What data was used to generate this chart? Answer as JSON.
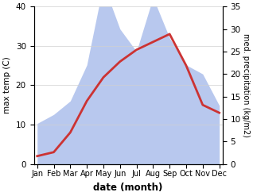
{
  "months": [
    "Jan",
    "Feb",
    "Mar",
    "Apr",
    "May",
    "Jun",
    "Jul",
    "Aug",
    "Sep",
    "Oct",
    "Nov",
    "Dec"
  ],
  "temperature": [
    2,
    3,
    8,
    16,
    22,
    26,
    29,
    31,
    33,
    25,
    15,
    13
  ],
  "precipitation": [
    9,
    11,
    14,
    22,
    40,
    30,
    25,
    37,
    28,
    22,
    20,
    13
  ],
  "temp_color": "#cc3333",
  "precip_fill_color": "#b8c8ee",
  "temp_ylim": [
    0,
    40
  ],
  "precip_ylim": [
    0,
    35
  ],
  "temp_yticks": [
    0,
    10,
    20,
    30,
    40
  ],
  "precip_yticks": [
    0,
    5,
    10,
    15,
    20,
    25,
    30,
    35
  ],
  "xlabel": "date (month)",
  "ylabel_left": "max temp (C)",
  "ylabel_right": "med. precipitation (kg/m2)",
  "background_color": "#ffffff"
}
